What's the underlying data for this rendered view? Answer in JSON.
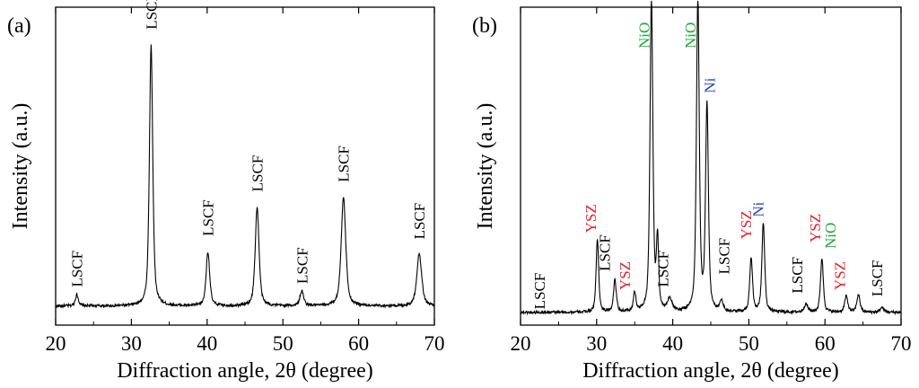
{
  "chart_data": [
    {
      "type": "line",
      "panel_label": "(a)",
      "xlabel_main": "Diffraction angle, 2",
      "xlabel_theta": "θ",
      "xlabel_unit": " (degree)",
      "ylabel": "Intensity (a.u.)",
      "xlim": [
        20,
        70
      ],
      "ylim": [
        0,
        100
      ],
      "xticks": [
        20,
        30,
        40,
        50,
        60,
        70
      ],
      "baseline": 6,
      "peaks": [
        {
          "x": 22.8,
          "h": 3.5,
          "w": 0.25
        },
        {
          "x": 32.6,
          "h": 82,
          "w": 0.26
        },
        {
          "x": 40.1,
          "h": 17,
          "w": 0.28
        },
        {
          "x": 46.6,
          "h": 31,
          "w": 0.3
        },
        {
          "x": 52.5,
          "h": 4.5,
          "w": 0.3
        },
        {
          "x": 58.0,
          "h": 34,
          "w": 0.36
        },
        {
          "x": 68.0,
          "h": 16.5,
          "w": 0.38
        }
      ],
      "annotations": [
        {
          "text": "LSCF",
          "x": 22.8,
          "y": 12,
          "color": "#000000"
        },
        {
          "text": "LSCF",
          "x": 32.6,
          "y": 93,
          "color": "#000000"
        },
        {
          "text": "LSCF",
          "x": 40.1,
          "y": 28,
          "color": "#000000"
        },
        {
          "text": "LSCF",
          "x": 46.6,
          "y": 42,
          "color": "#000000"
        },
        {
          "text": "LSCF",
          "x": 52.5,
          "y": 13,
          "color": "#000000"
        },
        {
          "text": "LSCF",
          "x": 58.0,
          "y": 45,
          "color": "#000000"
        },
        {
          "text": "LSCF",
          "x": 68.0,
          "y": 27,
          "color": "#000000"
        }
      ]
    },
    {
      "type": "line",
      "panel_label": "(b)",
      "xlabel_main": "Diffraction angle, 2",
      "xlabel_theta": "θ",
      "xlabel_unit": " (degree)",
      "ylabel": "Intensity (a.u.)",
      "xlim": [
        20,
        70
      ],
      "ylim": [
        0,
        100
      ],
      "xticks": [
        20,
        30,
        40,
        50,
        60,
        70
      ],
      "baseline": 4,
      "peaks": [
        {
          "x": 30.1,
          "h": 23,
          "w": 0.2
        },
        {
          "x": 32.4,
          "h": 10,
          "w": 0.22
        },
        {
          "x": 35.0,
          "h": 6,
          "w": 0.2
        },
        {
          "x": 37.2,
          "h": 99,
          "w": 0.22
        },
        {
          "x": 38.0,
          "h": 22,
          "w": 0.18
        },
        {
          "x": 39.6,
          "h": 4,
          "w": 0.35
        },
        {
          "x": 43.3,
          "h": 99,
          "w": 0.22
        },
        {
          "x": 44.5,
          "h": 65,
          "w": 0.22
        },
        {
          "x": 46.4,
          "h": 3,
          "w": 0.3
        },
        {
          "x": 50.3,
          "h": 17,
          "w": 0.22
        },
        {
          "x": 51.9,
          "h": 28,
          "w": 0.22
        },
        {
          "x": 57.5,
          "h": 2.5,
          "w": 0.3
        },
        {
          "x": 59.6,
          "h": 17,
          "w": 0.22
        },
        {
          "x": 62.8,
          "h": 5,
          "w": 0.25
        },
        {
          "x": 64.4,
          "h": 5.5,
          "w": 0.25
        },
        {
          "x": 67.5,
          "h": 1.5,
          "w": 0.3
        }
      ],
      "annotations": [
        {
          "text": "LSCF",
          "x": 22.5,
          "y": 5,
          "color": "#000000"
        },
        {
          "text": "YSZ",
          "x": 29.2,
          "y": 29,
          "color": "#e0202a"
        },
        {
          "text": "LSCF",
          "x": 31.0,
          "y": 17,
          "color": "#000000"
        },
        {
          "text": "YSZ",
          "x": 33.7,
          "y": 11,
          "color": "#e0202a"
        },
        {
          "text": "NiO",
          "x": 36.2,
          "y": 87,
          "color": "#1fa83c"
        },
        {
          "text": "LSCF",
          "x": 38.7,
          "y": 12,
          "color": "#000000"
        },
        {
          "text": "NiO",
          "x": 42.3,
          "y": 87,
          "color": "#1fa83c"
        },
        {
          "text": "Ni",
          "x": 44.8,
          "y": 73,
          "color": "#2a48a8"
        },
        {
          "text": "LSCF",
          "x": 46.7,
          "y": 16,
          "color": "#000000"
        },
        {
          "text": "YSZ",
          "x": 49.6,
          "y": 27,
          "color": "#e0202a"
        },
        {
          "text": "Ni",
          "x": 51.2,
          "y": 34,
          "color": "#2a48a8"
        },
        {
          "text": "LSCF",
          "x": 56.3,
          "y": 10,
          "color": "#000000"
        },
        {
          "text": "YSZ",
          "x": 58.7,
          "y": 26,
          "color": "#e0202a"
        },
        {
          "text": "NiO",
          "x": 60.7,
          "y": 24,
          "color": "#1fa83c"
        },
        {
          "text": "YSZ",
          "x": 61.9,
          "y": 11,
          "color": "#e0202a"
        },
        {
          "text": "LSCF",
          "x": 66.8,
          "y": 9,
          "color": "#000000"
        }
      ]
    }
  ]
}
